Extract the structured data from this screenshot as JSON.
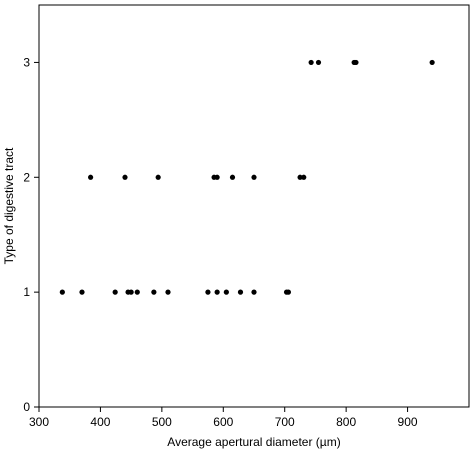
{
  "chart_data": {
    "type": "scatter",
    "title": "",
    "xlabel": "Average apertural diameter (µm)",
    "ylabel": "Type of digestive tract",
    "xlim": [
      300,
      1000
    ],
    "ylim": [
      0,
      3.5
    ],
    "xticks": [
      300,
      400,
      500,
      600,
      700,
      800,
      900
    ],
    "yticks": [
      0,
      1,
      2,
      3
    ],
    "grid": false,
    "legend": "none",
    "marker_color": "#000000",
    "points": [
      {
        "x": 338,
        "y": 1
      },
      {
        "x": 370,
        "y": 1
      },
      {
        "x": 424,
        "y": 1
      },
      {
        "x": 445,
        "y": 1
      },
      {
        "x": 450,
        "y": 1
      },
      {
        "x": 460,
        "y": 1
      },
      {
        "x": 487,
        "y": 1
      },
      {
        "x": 510,
        "y": 1
      },
      {
        "x": 575,
        "y": 1
      },
      {
        "x": 590,
        "y": 1
      },
      {
        "x": 605,
        "y": 1
      },
      {
        "x": 628,
        "y": 1
      },
      {
        "x": 650,
        "y": 1
      },
      {
        "x": 703,
        "y": 1
      },
      {
        "x": 706,
        "y": 1
      },
      {
        "x": 384,
        "y": 2
      },
      {
        "x": 440,
        "y": 2
      },
      {
        "x": 494,
        "y": 2
      },
      {
        "x": 585,
        "y": 2
      },
      {
        "x": 590,
        "y": 2
      },
      {
        "x": 615,
        "y": 2
      },
      {
        "x": 650,
        "y": 2
      },
      {
        "x": 725,
        "y": 2
      },
      {
        "x": 731,
        "y": 2
      },
      {
        "x": 743,
        "y": 3
      },
      {
        "x": 755,
        "y": 3
      },
      {
        "x": 813,
        "y": 3
      },
      {
        "x": 816,
        "y": 3
      },
      {
        "x": 940,
        "y": 3
      }
    ]
  }
}
